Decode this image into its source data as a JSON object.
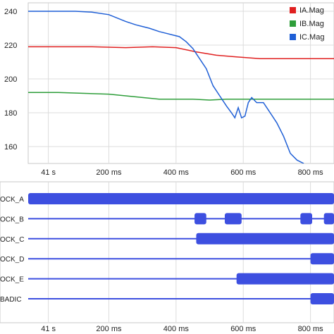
{
  "chart_data": [
    {
      "type": "line",
      "title": "",
      "xlabel": "",
      "ylabel": "",
      "x_tick_labels": [
        "41 s",
        "200 ms",
        "400 ms",
        "600 ms",
        "800 ms"
      ],
      "x_ticks_ms": [
        20,
        200,
        400,
        600,
        800
      ],
      "xlim_ms": [
        -40,
        870
      ],
      "ylim": [
        150,
        245
      ],
      "y_ticks": [
        160,
        180,
        200,
        220,
        240
      ],
      "grid": true,
      "legend_position": "top-right",
      "series": [
        {
          "name": "IA.Mag",
          "color": "#e02020",
          "points": [
            [
              -40,
              219
            ],
            [
              50,
              219
            ],
            [
              150,
              219
            ],
            [
              250,
              218.5
            ],
            [
              330,
              219
            ],
            [
              400,
              218.5
            ],
            [
              460,
              216
            ],
            [
              520,
              214
            ],
            [
              580,
              213
            ],
            [
              650,
              212
            ],
            [
              750,
              212
            ],
            [
              870,
              212
            ]
          ]
        },
        {
          "name": "IB.Mag",
          "color": "#2e9e3a",
          "points": [
            [
              -40,
              192
            ],
            [
              50,
              192
            ],
            [
              120,
              191.5
            ],
            [
              200,
              191
            ],
            [
              250,
              190
            ],
            [
              300,
              189
            ],
            [
              350,
              188
            ],
            [
              400,
              188
            ],
            [
              450,
              188
            ],
            [
              500,
              187.5
            ],
            [
              550,
              188
            ],
            [
              600,
              188
            ],
            [
              700,
              188
            ],
            [
              800,
              188
            ],
            [
              870,
              188
            ]
          ]
        },
        {
          "name": "IC.Mag",
          "color": "#1f5fd6",
          "points": [
            [
              -40,
              240
            ],
            [
              50,
              240
            ],
            [
              100,
              240
            ],
            [
              150,
              239.5
            ],
            [
              200,
              238
            ],
            [
              250,
              234
            ],
            [
              280,
              232
            ],
            [
              300,
              231
            ],
            [
              320,
              230
            ],
            [
              350,
              228
            ],
            [
              370,
              227
            ],
            [
              390,
              226
            ],
            [
              410,
              225
            ],
            [
              430,
              222
            ],
            [
              450,
              218
            ],
            [
              470,
              212
            ],
            [
              490,
              206
            ],
            [
              510,
              196
            ],
            [
              530,
              190
            ],
            [
              550,
              184
            ],
            [
              565,
              180
            ],
            [
              575,
              177
            ],
            [
              585,
              183
            ],
            [
              595,
              177
            ],
            [
              605,
              178
            ],
            [
              615,
              186
            ],
            [
              625,
              189
            ],
            [
              640,
              186
            ],
            [
              660,
              186
            ],
            [
              680,
              180
            ],
            [
              700,
              174
            ],
            [
              720,
              166
            ],
            [
              740,
              156
            ],
            [
              760,
              152
            ],
            [
              780,
              150
            ]
          ]
        }
      ]
    },
    {
      "type": "timeline",
      "title": "",
      "xlabel": "",
      "x_tick_labels": [
        "41 s",
        "200 ms",
        "400 ms",
        "600 ms",
        "800 ms"
      ],
      "x_ticks_ms": [
        20,
        200,
        400,
        600,
        800
      ],
      "xlim_ms": [
        -40,
        870
      ],
      "grid": true,
      "bar_color": "#3d4fe0",
      "signals": [
        {
          "label": "OCK_A",
          "on": [
            [
              -40,
              870
            ]
          ]
        },
        {
          "label": "OCK_B",
          "on": [
            [
              455,
              490
            ],
            [
              545,
              595
            ],
            [
              770,
              805
            ],
            [
              840,
              870
            ]
          ]
        },
        {
          "label": "OCK_C",
          "on": [
            [
              460,
              870
            ]
          ]
        },
        {
          "label": "OCK_D",
          "on": [
            [
              800,
              870
            ]
          ]
        },
        {
          "label": "OCK_E",
          "on": [
            [
              580,
              870
            ]
          ]
        },
        {
          "label": "BADIC",
          "on": [
            [
              800,
              870
            ]
          ]
        }
      ]
    }
  ]
}
